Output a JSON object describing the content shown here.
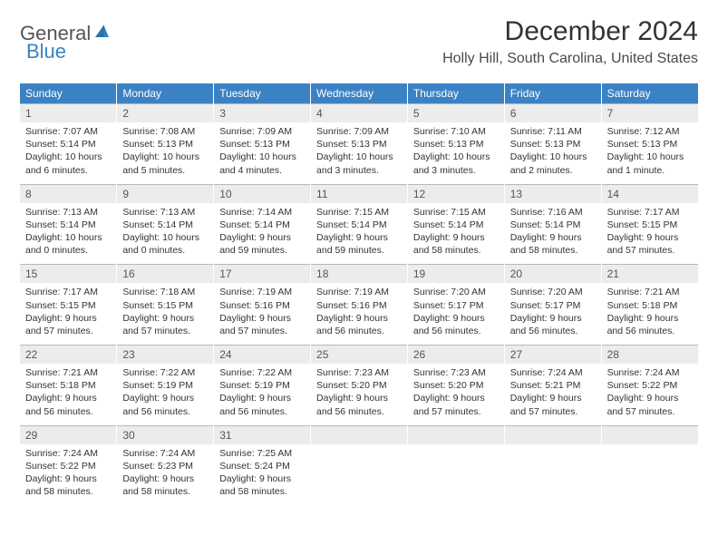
{
  "logo": {
    "part1": "General",
    "part2": "Blue"
  },
  "title": "December 2024",
  "location": "Holly Hill, South Carolina, United States",
  "colors": {
    "header_bg": "#3b82c4",
    "header_text": "#ffffff",
    "daynum_bg": "#ececec",
    "daynum_border": "#b8b8b8",
    "body_text": "#333333",
    "page_bg": "#ffffff",
    "logo_gray": "#555555",
    "logo_blue": "#3b82c4"
  },
  "fonts": {
    "title_size_pt": 22,
    "location_size_pt": 12,
    "dayhead_size_pt": 9,
    "daynum_size_pt": 9,
    "body_size_pt": 8
  },
  "weekdays": [
    "Sunday",
    "Monday",
    "Tuesday",
    "Wednesday",
    "Thursday",
    "Friday",
    "Saturday"
  ],
  "weeks": [
    [
      {
        "n": "1",
        "sunrise": "Sunrise: 7:07 AM",
        "sunset": "Sunset: 5:14 PM",
        "daylight": "Daylight: 10 hours and 6 minutes."
      },
      {
        "n": "2",
        "sunrise": "Sunrise: 7:08 AM",
        "sunset": "Sunset: 5:13 PM",
        "daylight": "Daylight: 10 hours and 5 minutes."
      },
      {
        "n": "3",
        "sunrise": "Sunrise: 7:09 AM",
        "sunset": "Sunset: 5:13 PM",
        "daylight": "Daylight: 10 hours and 4 minutes."
      },
      {
        "n": "4",
        "sunrise": "Sunrise: 7:09 AM",
        "sunset": "Sunset: 5:13 PM",
        "daylight": "Daylight: 10 hours and 3 minutes."
      },
      {
        "n": "5",
        "sunrise": "Sunrise: 7:10 AM",
        "sunset": "Sunset: 5:13 PM",
        "daylight": "Daylight: 10 hours and 3 minutes."
      },
      {
        "n": "6",
        "sunrise": "Sunrise: 7:11 AM",
        "sunset": "Sunset: 5:13 PM",
        "daylight": "Daylight: 10 hours and 2 minutes."
      },
      {
        "n": "7",
        "sunrise": "Sunrise: 7:12 AM",
        "sunset": "Sunset: 5:13 PM",
        "daylight": "Daylight: 10 hours and 1 minute."
      }
    ],
    [
      {
        "n": "8",
        "sunrise": "Sunrise: 7:13 AM",
        "sunset": "Sunset: 5:14 PM",
        "daylight": "Daylight: 10 hours and 0 minutes."
      },
      {
        "n": "9",
        "sunrise": "Sunrise: 7:13 AM",
        "sunset": "Sunset: 5:14 PM",
        "daylight": "Daylight: 10 hours and 0 minutes."
      },
      {
        "n": "10",
        "sunrise": "Sunrise: 7:14 AM",
        "sunset": "Sunset: 5:14 PM",
        "daylight": "Daylight: 9 hours and 59 minutes."
      },
      {
        "n": "11",
        "sunrise": "Sunrise: 7:15 AM",
        "sunset": "Sunset: 5:14 PM",
        "daylight": "Daylight: 9 hours and 59 minutes."
      },
      {
        "n": "12",
        "sunrise": "Sunrise: 7:15 AM",
        "sunset": "Sunset: 5:14 PM",
        "daylight": "Daylight: 9 hours and 58 minutes."
      },
      {
        "n": "13",
        "sunrise": "Sunrise: 7:16 AM",
        "sunset": "Sunset: 5:14 PM",
        "daylight": "Daylight: 9 hours and 58 minutes."
      },
      {
        "n": "14",
        "sunrise": "Sunrise: 7:17 AM",
        "sunset": "Sunset: 5:15 PM",
        "daylight": "Daylight: 9 hours and 57 minutes."
      }
    ],
    [
      {
        "n": "15",
        "sunrise": "Sunrise: 7:17 AM",
        "sunset": "Sunset: 5:15 PM",
        "daylight": "Daylight: 9 hours and 57 minutes."
      },
      {
        "n": "16",
        "sunrise": "Sunrise: 7:18 AM",
        "sunset": "Sunset: 5:15 PM",
        "daylight": "Daylight: 9 hours and 57 minutes."
      },
      {
        "n": "17",
        "sunrise": "Sunrise: 7:19 AM",
        "sunset": "Sunset: 5:16 PM",
        "daylight": "Daylight: 9 hours and 57 minutes."
      },
      {
        "n": "18",
        "sunrise": "Sunrise: 7:19 AM",
        "sunset": "Sunset: 5:16 PM",
        "daylight": "Daylight: 9 hours and 56 minutes."
      },
      {
        "n": "19",
        "sunrise": "Sunrise: 7:20 AM",
        "sunset": "Sunset: 5:17 PM",
        "daylight": "Daylight: 9 hours and 56 minutes."
      },
      {
        "n": "20",
        "sunrise": "Sunrise: 7:20 AM",
        "sunset": "Sunset: 5:17 PM",
        "daylight": "Daylight: 9 hours and 56 minutes."
      },
      {
        "n": "21",
        "sunrise": "Sunrise: 7:21 AM",
        "sunset": "Sunset: 5:18 PM",
        "daylight": "Daylight: 9 hours and 56 minutes."
      }
    ],
    [
      {
        "n": "22",
        "sunrise": "Sunrise: 7:21 AM",
        "sunset": "Sunset: 5:18 PM",
        "daylight": "Daylight: 9 hours and 56 minutes."
      },
      {
        "n": "23",
        "sunrise": "Sunrise: 7:22 AM",
        "sunset": "Sunset: 5:19 PM",
        "daylight": "Daylight: 9 hours and 56 minutes."
      },
      {
        "n": "24",
        "sunrise": "Sunrise: 7:22 AM",
        "sunset": "Sunset: 5:19 PM",
        "daylight": "Daylight: 9 hours and 56 minutes."
      },
      {
        "n": "25",
        "sunrise": "Sunrise: 7:23 AM",
        "sunset": "Sunset: 5:20 PM",
        "daylight": "Daylight: 9 hours and 56 minutes."
      },
      {
        "n": "26",
        "sunrise": "Sunrise: 7:23 AM",
        "sunset": "Sunset: 5:20 PM",
        "daylight": "Daylight: 9 hours and 57 minutes."
      },
      {
        "n": "27",
        "sunrise": "Sunrise: 7:24 AM",
        "sunset": "Sunset: 5:21 PM",
        "daylight": "Daylight: 9 hours and 57 minutes."
      },
      {
        "n": "28",
        "sunrise": "Sunrise: 7:24 AM",
        "sunset": "Sunset: 5:22 PM",
        "daylight": "Daylight: 9 hours and 57 minutes."
      }
    ],
    [
      {
        "n": "29",
        "sunrise": "Sunrise: 7:24 AM",
        "sunset": "Sunset: 5:22 PM",
        "daylight": "Daylight: 9 hours and 58 minutes."
      },
      {
        "n": "30",
        "sunrise": "Sunrise: 7:24 AM",
        "sunset": "Sunset: 5:23 PM",
        "daylight": "Daylight: 9 hours and 58 minutes."
      },
      {
        "n": "31",
        "sunrise": "Sunrise: 7:25 AM",
        "sunset": "Sunset: 5:24 PM",
        "daylight": "Daylight: 9 hours and 58 minutes."
      },
      {
        "n": "",
        "sunrise": "",
        "sunset": "",
        "daylight": ""
      },
      {
        "n": "",
        "sunrise": "",
        "sunset": "",
        "daylight": ""
      },
      {
        "n": "",
        "sunrise": "",
        "sunset": "",
        "daylight": ""
      },
      {
        "n": "",
        "sunrise": "",
        "sunset": "",
        "daylight": ""
      }
    ]
  ]
}
